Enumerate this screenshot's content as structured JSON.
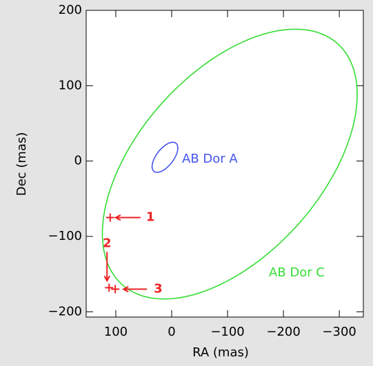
{
  "chart_data": {
    "type": "orbit",
    "x_label": "RA (mas)",
    "y_label": "Dec (mas)",
    "xlim": [
      153,
      -343
    ],
    "ylim": [
      -207,
      200
    ],
    "xticks": [
      100,
      0,
      {
        "value": -100,
        "label": "−100"
      },
      {
        "value": -200,
        "label": "−200"
      },
      {
        "value": -300,
        "label": "−300"
      }
    ],
    "yticks": [
      200,
      100,
      0,
      {
        "value": -100,
        "label": "−100"
      },
      {
        "value": -200,
        "label": "−200"
      }
    ],
    "orbits": [
      {
        "name": "AB Dor C",
        "color": "#33dd33",
        "center": [
          -104,
          -4
        ],
        "ra_amplitude": 228,
        "dec_amplitude": 179,
        "phase": 59
      },
      {
        "name": "AB Dor A",
        "color": "#4455ee",
        "center": [
          12,
          5
        ],
        "ra_amplitude": 23,
        "dec_amplitude": 20,
        "phase": 52
      }
    ],
    "points": {
      "color": "#ee2222",
      "labels": [
        "1",
        "2",
        "3"
      ],
      "x": [
        110,
        112,
        101
      ],
      "y": [
        -75,
        -168,
        -170
      ]
    }
  }
}
